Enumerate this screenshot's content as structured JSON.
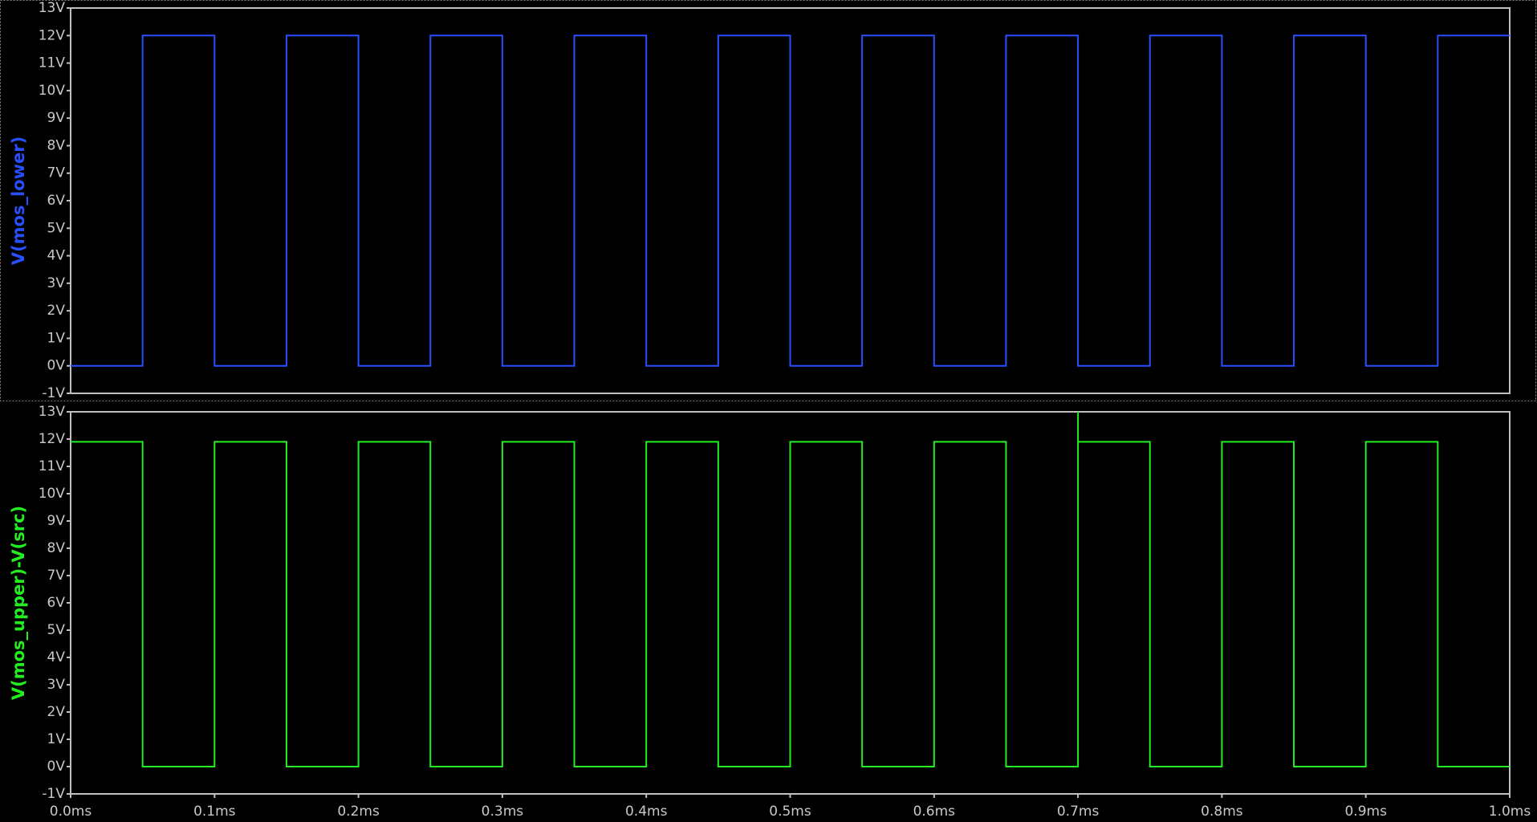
{
  "chart_data": [
    {
      "type": "line",
      "x": [
        0,
        0.05,
        0.05,
        0.1,
        0.1,
        0.15,
        0.15,
        0.2,
        0.2,
        0.25,
        0.25,
        0.3,
        0.3,
        0.35,
        0.35,
        0.4,
        0.4,
        0.45,
        0.45,
        0.5,
        0.5,
        0.55,
        0.55,
        0.6,
        0.6,
        0.65,
        0.65,
        0.7,
        0.7,
        0.75,
        0.75,
        0.8,
        0.8,
        0.85,
        0.85,
        0.9,
        0.9,
        0.95,
        0.95,
        1.0
      ],
      "series": [
        {
          "name": "V(mos_lower)",
          "color": "#2a4fff",
          "values": [
            0,
            0,
            12,
            12,
            0,
            0,
            12,
            12,
            0,
            0,
            12,
            12,
            0,
            0,
            12,
            12,
            0,
            0,
            12,
            12,
            0,
            0,
            12,
            12,
            0,
            0,
            12,
            12,
            0,
            0,
            12,
            12,
            0,
            0,
            12,
            12,
            0,
            0,
            12,
            12
          ]
        }
      ],
      "xlim": [
        0,
        1.0
      ],
      "ylim": [
        -1,
        13
      ],
      "yticks": [
        {
          "value": -1,
          "label": "-1V"
        },
        {
          "value": 0,
          "label": "0V"
        },
        {
          "value": 1,
          "label": "1V"
        },
        {
          "value": 2,
          "label": "2V"
        },
        {
          "value": 3,
          "label": "3V"
        },
        {
          "value": 4,
          "label": "4V"
        },
        {
          "value": 5,
          "label": "5V"
        },
        {
          "value": 6,
          "label": "6V"
        },
        {
          "value": 7,
          "label": "7V"
        },
        {
          "value": 8,
          "label": "8V"
        },
        {
          "value": 9,
          "label": "9V"
        },
        {
          "value": 10,
          "label": "10V"
        },
        {
          "value": 11,
          "label": "11V"
        },
        {
          "value": 12,
          "label": "12V"
        },
        {
          "value": 13,
          "label": "13V"
        }
      ]
    },
    {
      "type": "line",
      "x": [
        0,
        0.05,
        0.05,
        0.1,
        0.1,
        0.15,
        0.15,
        0.2,
        0.2,
        0.25,
        0.25,
        0.3,
        0.3,
        0.35,
        0.35,
        0.4,
        0.4,
        0.45,
        0.45,
        0.5,
        0.5,
        0.55,
        0.55,
        0.6,
        0.6,
        0.65,
        0.65,
        0.7,
        0.7,
        0.7,
        0.75,
        0.75,
        0.8,
        0.8,
        0.85,
        0.85,
        0.9,
        0.9,
        0.95,
        0.95,
        1.0
      ],
      "series": [
        {
          "name": "V(mos_upper)-V(src)",
          "color": "#22ee22",
          "values": [
            11.9,
            11.9,
            0,
            0,
            11.9,
            11.9,
            0,
            0,
            11.9,
            11.9,
            0,
            0,
            11.9,
            11.9,
            0,
            0,
            11.9,
            11.9,
            0,
            0,
            11.9,
            11.9,
            0,
            0,
            11.9,
            11.9,
            0,
            0,
            13,
            11.9,
            11.9,
            0,
            0,
            11.9,
            11.9,
            0,
            0,
            11.9,
            11.9,
            0,
            0
          ]
        }
      ],
      "xlim": [
        0,
        1.0
      ],
      "ylim": [
        -1,
        13
      ],
      "yticks": [
        {
          "value": -1,
          "label": "-1V"
        },
        {
          "value": 0,
          "label": "0V"
        },
        {
          "value": 1,
          "label": "1V"
        },
        {
          "value": 2,
          "label": "2V"
        },
        {
          "value": 3,
          "label": "3V"
        },
        {
          "value": 4,
          "label": "4V"
        },
        {
          "value": 5,
          "label": "5V"
        },
        {
          "value": 6,
          "label": "6V"
        },
        {
          "value": 7,
          "label": "7V"
        },
        {
          "value": 8,
          "label": "8V"
        },
        {
          "value": 9,
          "label": "9V"
        },
        {
          "value": 10,
          "label": "10V"
        },
        {
          "value": 11,
          "label": "11V"
        },
        {
          "value": 12,
          "label": "12V"
        },
        {
          "value": 13,
          "label": "13V"
        }
      ],
      "xticks": [
        {
          "value": 0,
          "label": "0.0ms"
        },
        {
          "value": 0.1,
          "label": "0.1ms"
        },
        {
          "value": 0.2,
          "label": "0.2ms"
        },
        {
          "value": 0.3,
          "label": "0.3ms"
        },
        {
          "value": 0.4,
          "label": "0.4ms"
        },
        {
          "value": 0.5,
          "label": "0.5ms"
        },
        {
          "value": 0.6,
          "label": "0.6ms"
        },
        {
          "value": 0.7,
          "label": "0.7ms"
        },
        {
          "value": 0.8,
          "label": "0.8ms"
        },
        {
          "value": 0.9,
          "label": "0.9ms"
        },
        {
          "value": 1.0,
          "label": "1.0ms"
        }
      ]
    }
  ]
}
